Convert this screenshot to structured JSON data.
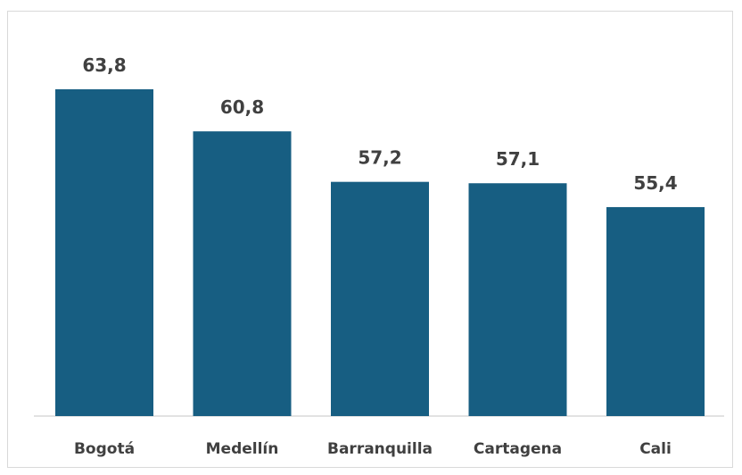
{
  "chart_data": {
    "type": "bar",
    "categories": [
      "Bogotá",
      "Medellín",
      "Barranquilla",
      "Cartagena",
      "Cali"
    ],
    "values": [
      63.8,
      60.8,
      57.2,
      57.1,
      55.4
    ],
    "value_labels": [
      "63,8",
      "60,8",
      "57,2",
      "57,1",
      "55,4"
    ],
    "title": "",
    "xlabel": "",
    "ylabel": "",
    "ylim": [
      40.5,
      63.8
    ],
    "grid": false,
    "legend": "none",
    "bar_color": "#175e82"
  }
}
